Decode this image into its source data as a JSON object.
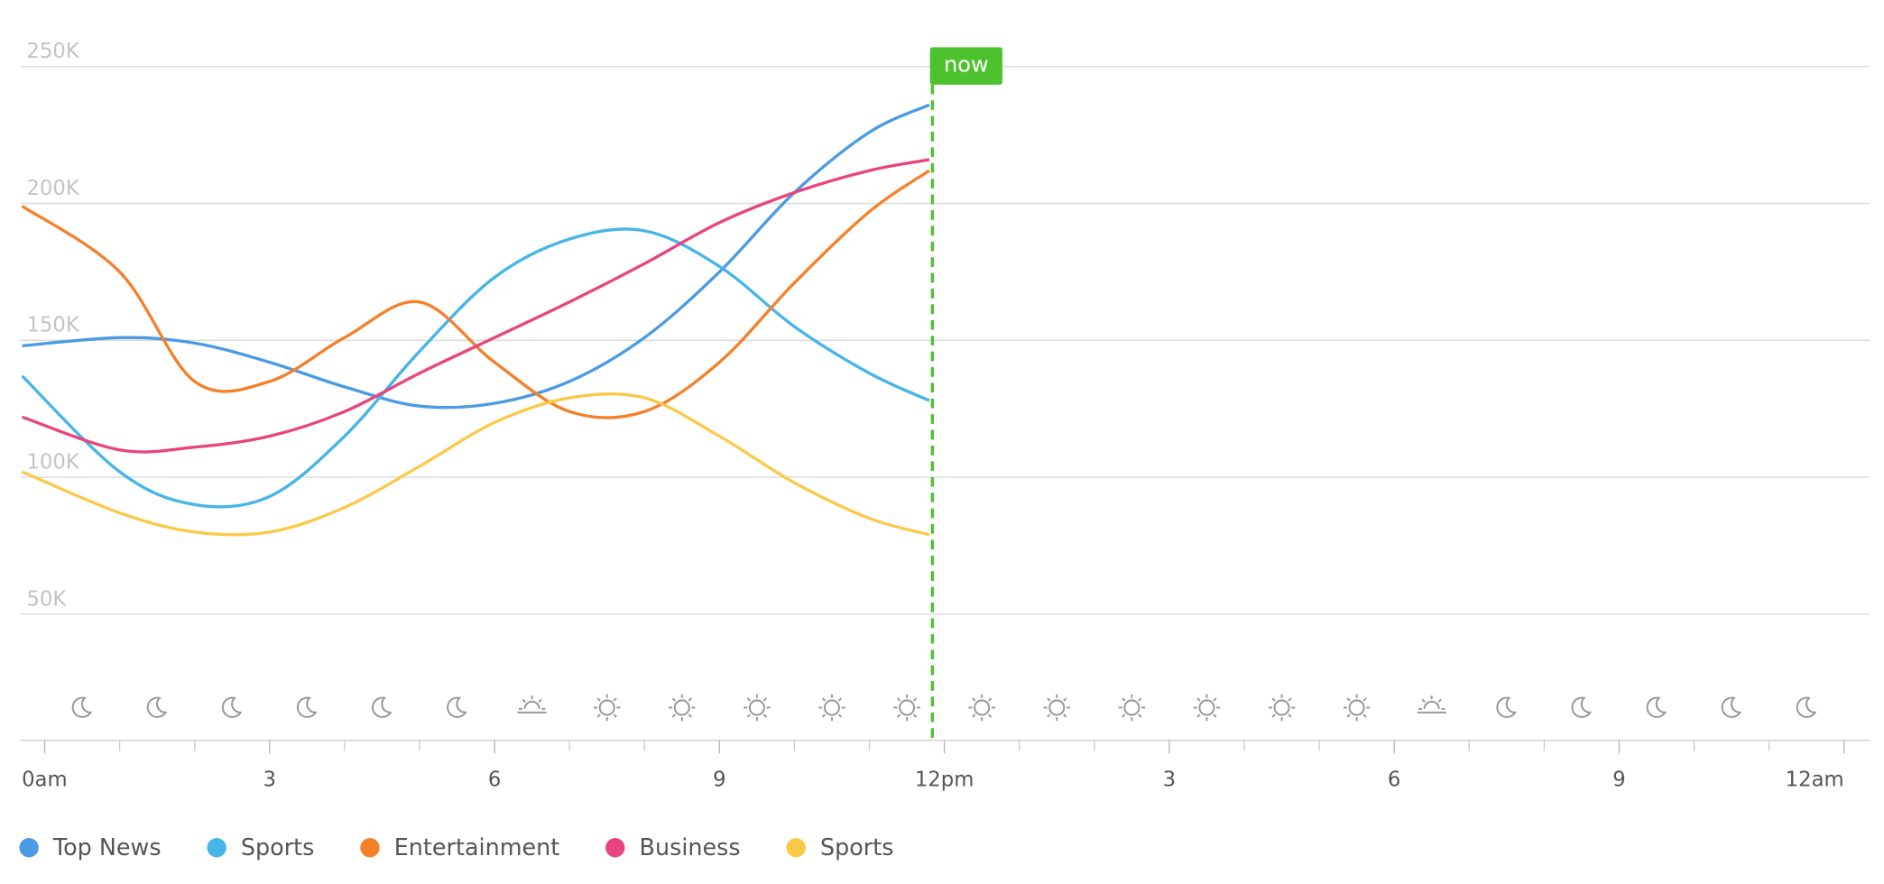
{
  "chart_data": {
    "type": "line",
    "x": [
      -0.3,
      1,
      2,
      3,
      4,
      5,
      6,
      7,
      8,
      9,
      10,
      11,
      11.8
    ],
    "series": [
      {
        "name": "Top News",
        "color": "#4a9be4",
        "values": [
          148000,
          151000,
          149000,
          142000,
          133000,
          126000,
          127000,
          135000,
          151000,
          175000,
          204000,
          226000,
          236000
        ]
      },
      {
        "name": "Sports",
        "color": "#46b5e8",
        "values": [
          137000,
          102000,
          90000,
          93000,
          115000,
          146000,
          173000,
          187000,
          190000,
          177000,
          155000,
          138000,
          128000
        ]
      },
      {
        "name": "Entertainment",
        "color": "#f5802a",
        "values": [
          199000,
          175000,
          135000,
          135000,
          151000,
          164000,
          142000,
          124000,
          124000,
          142000,
          171000,
          197000,
          212000
        ]
      },
      {
        "name": "Business",
        "color": "#e8457e",
        "values": [
          122000,
          110000,
          111000,
          115000,
          124000,
          138000,
          151000,
          164000,
          178000,
          193000,
          204000,
          212000,
          216000
        ]
      },
      {
        "name": "Sports",
        "color": "#fbc94a",
        "values": [
          102000,
          87000,
          80000,
          80000,
          89000,
          104000,
          120000,
          129000,
          129000,
          115000,
          98000,
          85000,
          79000
        ]
      }
    ],
    "xlim": [
      -0.3,
      24
    ],
    "xticks": [
      {
        "value": 0,
        "label": "0am"
      },
      3,
      6,
      9,
      {
        "value": 12,
        "label": "12pm"
      },
      {
        "value": 15,
        "label": "3"
      },
      {
        "value": 18,
        "label": "6"
      },
      {
        "value": 21,
        "label": "9"
      },
      {
        "value": 24,
        "label": "12am"
      }
    ],
    "ylim": [
      0,
      250000
    ],
    "yticks": [
      {
        "value": 50000,
        "label": "50K"
      },
      {
        "value": 100000,
        "label": "100K"
      },
      {
        "value": 150000,
        "label": "150K"
      },
      {
        "value": 200000,
        "label": "200K"
      },
      {
        "value": 250000,
        "label": "250K"
      }
    ],
    "grid": true,
    "now_marker": {
      "label": "now",
      "x": 11.84,
      "color": "#4cc22f"
    },
    "legend": "bottom-left"
  }
}
